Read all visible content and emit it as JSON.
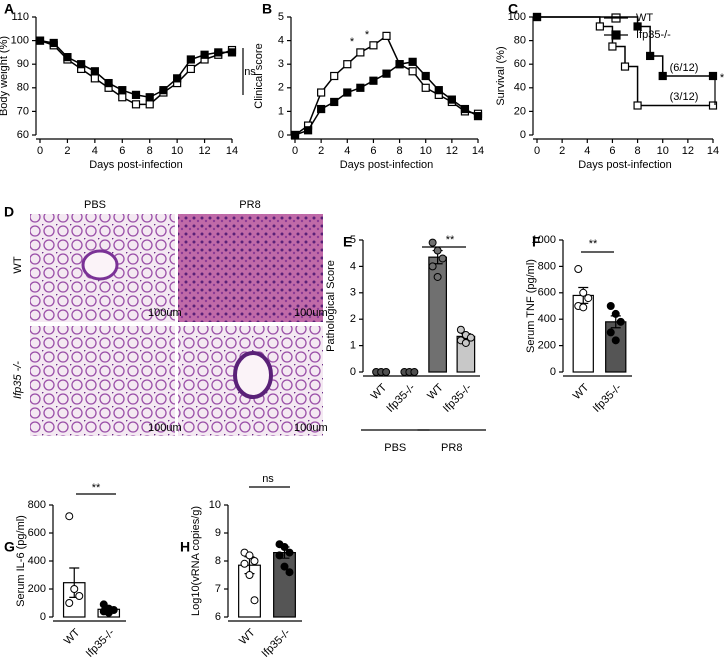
{
  "figure": {
    "panel_d": {
      "label": "D",
      "columns": [
        "PBS",
        "PR8"
      ],
      "rows": [
        "WT",
        "Ifp35 -/-"
      ],
      "scale_bar": "100um"
    }
  },
  "chart_data": [
    {
      "type": "line",
      "label": "A",
      "xlabel": "Days post-infection",
      "ylabel": "Body weight (%)",
      "x": [
        0,
        1,
        2,
        3,
        4,
        5,
        6,
        7,
        8,
        9,
        10,
        11,
        12,
        13,
        14
      ],
      "xlim": [
        0,
        14
      ],
      "xticks": [
        0,
        2,
        4,
        6,
        8,
        10,
        12,
        14
      ],
      "ylim": [
        60,
        110
      ],
      "yticks": [
        60,
        70,
        80,
        90,
        100,
        110
      ],
      "series": [
        {
          "name": "WT",
          "color": "#000000",
          "fill": "#ffffff",
          "values": [
            100,
            98,
            92,
            88,
            84,
            80,
            76,
            73,
            73,
            78,
            82,
            88,
            92,
            94,
            96
          ]
        },
        {
          "name": "Ifp35-/-",
          "color": "#000000",
          "fill": "#000000",
          "values": [
            100,
            99,
            93,
            90,
            87,
            82,
            79,
            77,
            76,
            79,
            84,
            92,
            94,
            95,
            95
          ]
        }
      ],
      "annotations": [
        "ns"
      ]
    },
    {
      "type": "line",
      "label": "B",
      "xlabel": "Days post-infection",
      "ylabel": "Clinical score",
      "x": [
        0,
        1,
        2,
        3,
        4,
        5,
        6,
        7,
        8,
        9,
        10,
        11,
        12,
        13,
        14
      ],
      "xlim": [
        0,
        14
      ],
      "xticks": [
        0,
        2,
        4,
        6,
        8,
        10,
        12,
        14
      ],
      "ylim": [
        0,
        5
      ],
      "yticks": [
        0,
        1,
        2,
        3,
        4,
        5
      ],
      "series": [
        {
          "name": "WT",
          "color": "#000000",
          "fill": "#ffffff",
          "values": [
            0,
            0.4,
            1.8,
            2.5,
            3.0,
            3.5,
            3.8,
            4.2,
            3.0,
            2.7,
            2.0,
            1.7,
            1.4,
            1.0,
            0.9
          ]
        },
        {
          "name": "Ifp35-/-",
          "color": "#000000",
          "fill": "#000000",
          "values": [
            0,
            0.2,
            1.1,
            1.4,
            1.8,
            2.0,
            2.3,
            2.6,
            3.0,
            3.1,
            2.5,
            1.9,
            1.5,
            1.1,
            0.8
          ]
        }
      ],
      "annotations": [
        "*",
        "*"
      ]
    },
    {
      "type": "step",
      "label": "C",
      "xlabel": "Days post-infection",
      "ylabel": "Survival (%)",
      "xlim": [
        0,
        14
      ],
      "xticks": [
        0,
        2,
        4,
        6,
        8,
        10,
        12,
        14
      ],
      "ylim": [
        0,
        100
      ],
      "yticks": [
        0,
        20,
        40,
        60,
        80,
        100
      ],
      "series": [
        {
          "name": "WT",
          "color": "#000000",
          "fill": "#ffffff",
          "x": [
            0,
            5,
            6,
            7,
            8,
            14
          ],
          "values": [
            100,
            92,
            75,
            58,
            25,
            25
          ]
        },
        {
          "name": "Ifp35-/-",
          "color": "#000000",
          "fill": "#000000",
          "x": [
            0,
            8,
            9,
            10,
            14
          ],
          "values": [
            100,
            92,
            67,
            50,
            50
          ]
        }
      ],
      "annotations": [
        "(6/12)",
        "(3/12)",
        "*"
      ]
    },
    {
      "type": "bar",
      "label": "E",
      "ylabel": "Pathological Score",
      "categories": [
        "WT",
        "Ifp35-/-",
        "WT",
        "Ifp35-/-"
      ],
      "groups": [
        "PBS",
        "PR8"
      ],
      "values": [
        0,
        0,
        4.35,
        1.35
      ],
      "errors": [
        0,
        0,
        0.25,
        0.1
      ],
      "colors": [
        "#ffffff",
        "#ffffff",
        "#707070",
        "#c8c8c8"
      ],
      "point_colors": [
        "#505050",
        "#505050",
        "#707070",
        "#c8c8c8"
      ],
      "points": [
        [
          0,
          0,
          0
        ],
        [
          0,
          0,
          0
        ],
        [
          4.9,
          4.6,
          4.3,
          4.0,
          3.6
        ],
        [
          1.6,
          1.4,
          1.3,
          1.2,
          1.1
        ]
      ],
      "ylim": [
        0,
        5
      ],
      "yticks": [
        0,
        1,
        2,
        3,
        4,
        5
      ],
      "annotations": [
        "**"
      ]
    },
    {
      "type": "bar",
      "label": "F",
      "ylabel": "Serum TNF (pg/ml)",
      "categories": [
        "WT",
        "Ifp35-/-"
      ],
      "values": [
        580,
        380
      ],
      "errors": [
        60,
        45
      ],
      "colors": [
        "#ffffff",
        "#555555"
      ],
      "point_colors": [
        "#ffffff",
        "#000000"
      ],
      "points": [
        [
          780,
          600,
          560,
          500,
          490
        ],
        [
          500,
          440,
          380,
          300,
          240
        ]
      ],
      "ylim": [
        0,
        1000
      ],
      "yticks": [
        0,
        200,
        400,
        600,
        800,
        1000
      ],
      "annotations": [
        "**"
      ]
    },
    {
      "type": "bar",
      "label": "G",
      "ylabel": "Serum IL-6 (pg/ml)",
      "categories": [
        "WT",
        "Ifp35-/-"
      ],
      "values": [
        245,
        55
      ],
      "errors": [
        105,
        15
      ],
      "colors": [
        "#ffffff",
        "#ffffff"
      ],
      "point_colors": [
        "#ffffff",
        "#000000"
      ],
      "points": [
        [
          720,
          200,
          150,
          100
        ],
        [
          90,
          60,
          50,
          40,
          30
        ]
      ],
      "ylim": [
        0,
        800
      ],
      "yticks": [
        0,
        200,
        400,
        600,
        800
      ],
      "annotations": [
        "**"
      ]
    },
    {
      "type": "bar",
      "label": "H",
      "ylabel": "Log10(vRNA copies/g)",
      "categories": [
        "WT",
        "Ifp35-/-"
      ],
      "values": [
        7.85,
        8.3
      ],
      "errors": [
        0.3,
        0.2
      ],
      "colors": [
        "#ffffff",
        "#555555"
      ],
      "point_colors": [
        "#ffffff",
        "#000000"
      ],
      "points": [
        [
          8.3,
          8.2,
          8.0,
          7.9,
          7.5,
          6.6
        ],
        [
          8.6,
          8.5,
          8.3,
          8.2,
          7.8,
          7.6
        ]
      ],
      "ylim": [
        6,
        10
      ],
      "yticks": [
        6,
        7,
        8,
        9,
        10
      ],
      "annotations": [
        "ns"
      ]
    }
  ]
}
